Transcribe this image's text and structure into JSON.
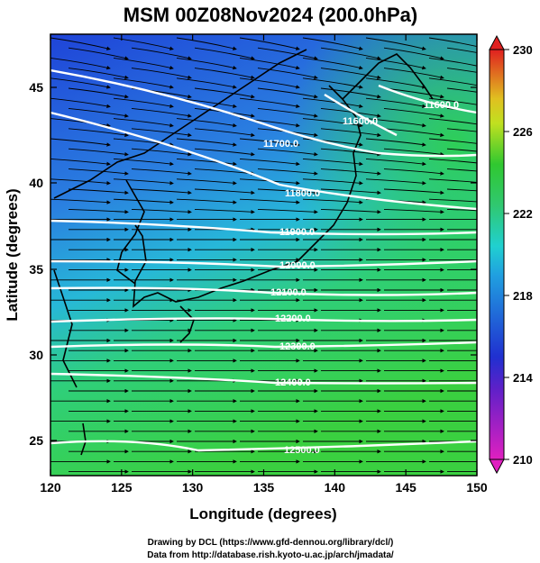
{
  "title": "MSM 00Z08Nov2024 (200.0hPa)",
  "xlabel": "Longitude (degrees)",
  "ylabel": "Latitude  (degrees)",
  "x_ticks": [
    "120",
    "125",
    "130",
    "135",
    "140",
    "145",
    "150"
  ],
  "y_ticks": [
    "25",
    "30",
    "35",
    "40",
    "45"
  ],
  "colorbar": {
    "min": 210,
    "max": 230,
    "ticks": [
      "210",
      "214",
      "218",
      "222",
      "226",
      "230"
    ],
    "colors": {
      "magenta": "#e020c0",
      "blue": "#2030d0",
      "cyan": "#20d0d0",
      "green": "#30c830",
      "yellow": "#e0e020",
      "red": "#e02020"
    }
  },
  "contours": [
    {
      "label": "11600.0"
    },
    {
      "label": "11600.0"
    },
    {
      "label": "11700.0"
    },
    {
      "label": "11800.0"
    },
    {
      "label": "11900.0"
    },
    {
      "label": "12000.0"
    },
    {
      "label": "12100.0"
    },
    {
      "label": "12200.0"
    },
    {
      "label": "12300.0"
    },
    {
      "label": "12400.0"
    },
    {
      "label": "12500.0"
    }
  ],
  "footer": {
    "line1": "Drawing by DCL (https://www.gfd-dennou.org/library/dcl/)",
    "line2": "Data from http://database.rish.kyoto-u.ac.jp/arch/jmadata/"
  }
}
